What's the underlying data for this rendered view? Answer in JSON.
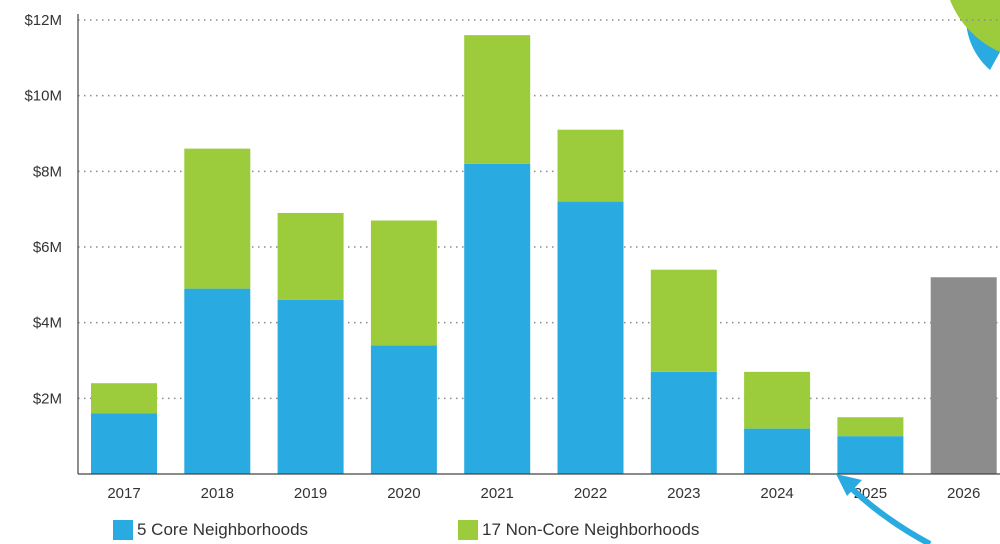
{
  "chart_data": {
    "type": "bar",
    "stacked": true,
    "categories": [
      "2017",
      "2018",
      "2019",
      "2020",
      "2021",
      "2022",
      "2023",
      "2024",
      "2025",
      "2026"
    ],
    "series": [
      {
        "name": "5 Core Neighborhoods",
        "color": "#29abe2",
        "values": [
          1.6,
          4.9,
          4.6,
          3.4,
          8.2,
          7.2,
          2.7,
          1.2,
          1.0,
          null
        ]
      },
      {
        "name": "17 Non-Core Neighborhoods",
        "color": "#9ccc3c",
        "values": [
          0.8,
          3.7,
          2.3,
          3.3,
          3.4,
          1.9,
          2.7,
          1.5,
          0.5,
          null
        ]
      },
      {
        "name": "",
        "color": "#8c8c8c",
        "values": [
          null,
          null,
          null,
          null,
          null,
          null,
          null,
          null,
          null,
          5.2
        ]
      }
    ],
    "y_ticks": [
      "$2M",
      "$4M",
      "$6M",
      "$8M",
      "$10M",
      "$12M"
    ],
    "y_tick_values": [
      2,
      4,
      6,
      8,
      10,
      12
    ],
    "ylim": [
      0,
      12
    ],
    "y_unit": "millions of dollars",
    "title": "",
    "xlabel": "",
    "ylabel": "",
    "grid": "dotted horizontal",
    "legend_position": "bottom"
  },
  "decor": {
    "corner_shape_color": "#9ccc3c",
    "corner_ring_color": "#29abe2",
    "arrow_color": "#29abe2"
  }
}
